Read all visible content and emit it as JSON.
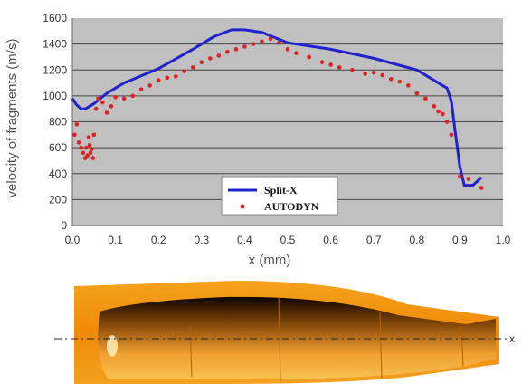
{
  "chart_data": {
    "type": "scatter",
    "title": "",
    "xlabel": "x (mm)",
    "ylabel": "velocity of fragments (m/s)",
    "xlim": [
      0.0,
      1.0
    ],
    "ylim": [
      0,
      1600
    ],
    "xticks": [
      "0.0",
      "0.1",
      "0.2",
      "0.3",
      "0.4",
      "0.5",
      "0.6",
      "0.7",
      "0.8",
      "0.9",
      "1.0"
    ],
    "yticks": [
      "0",
      "200",
      "400",
      "600",
      "800",
      "1000",
      "1200",
      "1400",
      "1600"
    ],
    "grid": "horizontal",
    "legend_position": "bottom-right",
    "background": "#c0c0c0",
    "series": [
      {
        "name": "Split-X",
        "kind": "line",
        "color": "#2222cc",
        "x": [
          0.0,
          0.01,
          0.02,
          0.03,
          0.05,
          0.08,
          0.12,
          0.2,
          0.28,
          0.33,
          0.37,
          0.4,
          0.44,
          0.47,
          0.5,
          0.6,
          0.7,
          0.8,
          0.84,
          0.86,
          0.87,
          0.88,
          0.89,
          0.9,
          0.91,
          0.93,
          0.95
        ],
        "y": [
          980,
          930,
          900,
          900,
          940,
          1020,
          1100,
          1210,
          1360,
          1460,
          1510,
          1510,
          1490,
          1450,
          1410,
          1360,
          1290,
          1200,
          1120,
          1080,
          1060,
          960,
          700,
          450,
          310,
          310,
          370
        ]
      },
      {
        "name": "AUTODYN",
        "kind": "scatter",
        "color": "#dd2222",
        "x": [
          0.005,
          0.01,
          0.015,
          0.02,
          0.025,
          0.03,
          0.032,
          0.035,
          0.038,
          0.04,
          0.042,
          0.045,
          0.048,
          0.05,
          0.055,
          0.06,
          0.07,
          0.08,
          0.09,
          0.1,
          0.12,
          0.14,
          0.16,
          0.18,
          0.2,
          0.22,
          0.24,
          0.26,
          0.28,
          0.3,
          0.32,
          0.34,
          0.36,
          0.38,
          0.4,
          0.42,
          0.44,
          0.46,
          0.48,
          0.5,
          0.52,
          0.55,
          0.58,
          0.6,
          0.62,
          0.65,
          0.68,
          0.7,
          0.72,
          0.74,
          0.76,
          0.78,
          0.8,
          0.82,
          0.84,
          0.85,
          0.86,
          0.87,
          0.88,
          0.9,
          0.92,
          0.95
        ],
        "y": [
          700,
          780,
          640,
          600,
          560,
          520,
          600,
          540,
          680,
          620,
          560,
          590,
          520,
          700,
          900,
          980,
          950,
          870,
          920,
          990,
          980,
          1000,
          1050,
          1080,
          1120,
          1140,
          1150,
          1190,
          1220,
          1260,
          1290,
          1310,
          1340,
          1360,
          1380,
          1400,
          1420,
          1440,
          1410,
          1360,
          1330,
          1300,
          1260,
          1240,
          1220,
          1200,
          1170,
          1180,
          1160,
          1130,
          1110,
          1080,
          1020,
          980,
          920,
          880,
          860,
          800,
          700,
          380,
          360,
          290
        ]
      }
    ]
  },
  "figure": {
    "shell_colors": {
      "outer": "#f0940c",
      "inner": "#e8a21a",
      "dark": "#1a0e00"
    },
    "axis_line_label": "x"
  }
}
